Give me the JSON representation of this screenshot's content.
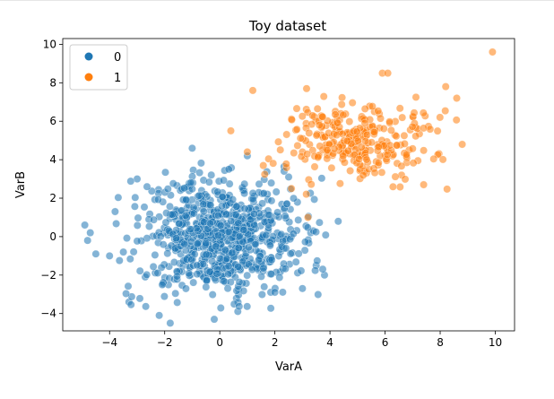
{
  "chart_data": {
    "type": "scatter",
    "title": "Toy dataset",
    "xlabel": "VarA",
    "ylabel": "VarB",
    "xlim": [
      -5.7,
      10.7
    ],
    "ylim": [
      -4.9,
      10.3
    ],
    "xticks": [
      -4,
      -2,
      0,
      2,
      4,
      6,
      8,
      10
    ],
    "yticks": [
      -4,
      -2,
      0,
      2,
      4,
      6,
      8,
      10
    ],
    "grid": false,
    "legend": {
      "placement": "top-left"
    },
    "series": [
      {
        "name": "0",
        "color": "#1f77b4",
        "cluster": {
          "mean": [
            0,
            0
          ],
          "std": [
            1.5,
            1.5
          ],
          "count": 800
        },
        "points": [
          [
            -4.9,
            0.6
          ],
          [
            -4.8,
            -0.2
          ],
          [
            -4.7,
            0.2
          ],
          [
            -4.5,
            -0.9
          ],
          [
            -4.0,
            -1.0
          ],
          [
            -3.8,
            1.3
          ],
          [
            -3.5,
            -0.8
          ],
          [
            -3.3,
            -3.4
          ],
          [
            -3.0,
            3.0
          ],
          [
            -2.2,
            -4.1
          ],
          [
            -1.8,
            -4.5
          ],
          [
            -1.0,
            4.6
          ],
          [
            -0.2,
            -4.3
          ],
          [
            1.0,
            4.2
          ],
          [
            3.0,
            -2.7
          ],
          [
            3.3,
            0.2
          ],
          [
            3.5,
            -1.5
          ],
          [
            3.8,
            -2.0
          ],
          [
            4.3,
            0.8
          ],
          [
            2.5,
            3.1
          ]
        ]
      },
      {
        "name": "1",
        "color": "#ff7f0e",
        "cluster": {
          "mean": [
            5,
            5
          ],
          "std": [
            1.4,
            1.1
          ],
          "count": 300
        },
        "points": [
          [
            9.9,
            9.6
          ],
          [
            8.2,
            7.8
          ],
          [
            8.6,
            7.2
          ],
          [
            8.8,
            4.8
          ],
          [
            5.9,
            8.5
          ],
          [
            6.1,
            8.5
          ],
          [
            1.2,
            7.6
          ],
          [
            0.4,
            5.5
          ],
          [
            1.0,
            4.4
          ],
          [
            3.2,
            1.0
          ],
          [
            3.0,
            4.4
          ],
          [
            7.4,
            2.7
          ],
          [
            6.6,
            3.2
          ],
          [
            2.6,
            2.5
          ]
        ]
      }
    ]
  }
}
